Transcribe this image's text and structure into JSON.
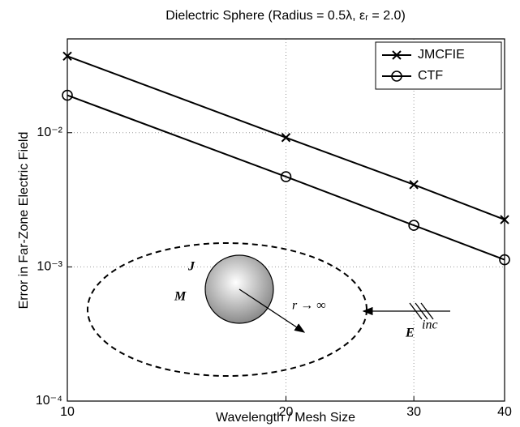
{
  "chart_data": {
    "type": "line",
    "title": "Dielectric Sphere (Radius = 0.5λ, εᵣ = 2.0)",
    "x_label": "Wavelength / Mesh Size",
    "y_label": "Error in Far-Zone Electric Field",
    "x": [
      10,
      20,
      30,
      40
    ],
    "series": [
      {
        "name": "JMCFIE",
        "color": "#000000",
        "marker": "x",
        "values": [
          0.0372,
          0.0092,
          0.0041,
          0.00225
        ]
      },
      {
        "name": "CTF",
        "color": "#000000",
        "marker": "o",
        "values": [
          0.019,
          0.0047,
          0.00204,
          0.00113
        ]
      }
    ],
    "xlim": [
      10,
      40
    ],
    "ylim": [
      0.0001,
      0.05
    ],
    "xticks": [
      10,
      20,
      30,
      40
    ],
    "yticks": [
      {
        "value": 0.0001,
        "label": "10⁻⁴"
      },
      {
        "value": 0.001,
        "label": "10⁻³"
      },
      {
        "value": 0.01,
        "label": "10⁻²"
      }
    ],
    "xscale": "log",
    "yscale": "log",
    "grid": true,
    "legend": "upper right",
    "annotations": [
      "J",
      "M",
      "r → ∞",
      "E",
      "inc"
    ]
  }
}
